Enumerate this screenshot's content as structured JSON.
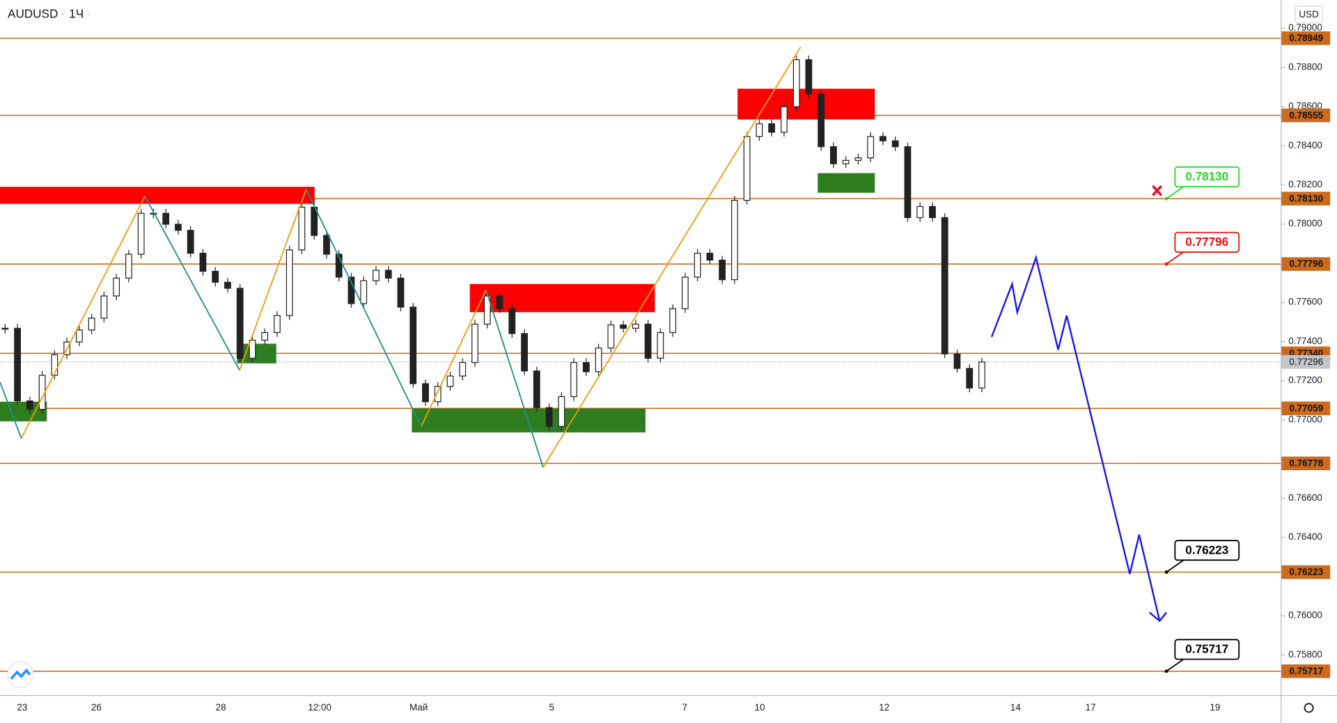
{
  "header": {
    "symbol": "AUDUSD",
    "interval": "1Ч",
    "currency": "USD"
  },
  "chart_data": {
    "type": "candlestick",
    "ylim": [
      0.75595,
      0.79144
    ],
    "yticks": [
      {
        "value": 0.79,
        "label": "0.79000"
      },
      {
        "value": 0.788,
        "label": "0.78800"
      },
      {
        "value": 0.786,
        "label": "0.78600"
      },
      {
        "value": 0.784,
        "label": "0.78400"
      },
      {
        "value": 0.782,
        "label": "0.78200"
      },
      {
        "value": 0.78,
        "label": "0.78000"
      },
      {
        "value": 0.776,
        "label": "0.77600"
      },
      {
        "value": 0.774,
        "label": "0.77400"
      },
      {
        "value": 0.772,
        "label": "0.77200"
      },
      {
        "value": 0.77,
        "label": "0.77000"
      },
      {
        "value": 0.766,
        "label": "0.76600"
      },
      {
        "value": 0.764,
        "label": "0.76400"
      },
      {
        "value": 0.76,
        "label": "0.76000"
      },
      {
        "value": 0.758,
        "label": "0.75800"
      }
    ],
    "x_labels": [
      "23",
      "26",
      "28",
      "12:00",
      "Май",
      "5",
      "7",
      "10",
      "12",
      "14",
      "17",
      "19"
    ],
    "close": [
      0.77468,
      0.77097,
      0.77054,
      0.77228,
      0.77333,
      0.77398,
      0.77459,
      0.7752,
      0.77633,
      0.77724,
      0.77846,
      0.78055,
      0.78055,
      0.77999,
      0.77968,
      0.77851,
      0.77759,
      0.77703,
      0.77672,
      0.77315,
      0.77407,
      0.77446,
      0.77533,
      0.77868,
      0.78086,
      0.77942,
      0.77846,
      0.77729,
      0.77594,
      0.77711,
      0.77764,
      0.77724,
      0.77576,
      0.77185,
      0.77093,
      0.77171,
      0.77224,
      0.77293,
      0.77489,
      0.77633,
      0.77568,
      0.77441,
      0.7725,
      0.77063,
      0.76967,
      0.77119,
      0.77293,
      0.77246,
      0.77367,
      0.77485,
      0.77468,
      0.77489,
      0.77315,
      0.77446,
      0.77568,
      0.77729,
      0.77851,
      0.77816,
      0.77716,
      0.78121,
      0.78447,
      0.78512,
      0.78469,
      0.78599,
      0.78839,
      0.78665,
      0.78395,
      0.78308,
      0.78325,
      0.78338,
      0.78447,
      0.78425,
      0.78395,
      0.78033,
      0.7809,
      0.78033,
      0.77337,
      0.77263,
      0.77163,
      0.77296
    ],
    "levels": [
      0.78949,
      0.78555,
      {
        "value": 0.7813,
        "label": "0.78130"
      },
      0.77796,
      {
        "value": 0.7734,
        "label": "0.77340"
      },
      0.77059,
      0.76778,
      0.76223,
      0.75717
    ],
    "level_color": "#cc6b1e",
    "last_price": 0.77296,
    "callouts": [
      {
        "value": 0.7813,
        "label": "0.78130",
        "color": "#22dd22"
      },
      {
        "value": 0.77796,
        "label": "0.77796",
        "color": "#ee1111"
      },
      {
        "value": 0.76223,
        "label": "0.76223",
        "color": "#000000"
      },
      {
        "value": 0.75717,
        "label": "0.75717",
        "color": "#000000"
      }
    ]
  }
}
